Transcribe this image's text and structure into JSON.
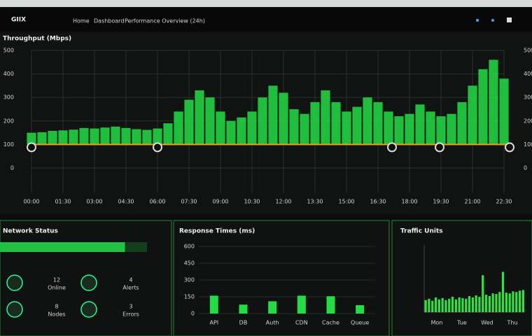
{
  "header": {
    "logo": "GIIX",
    "nav": [
      "Home",
      "Dashboard"
    ],
    "title": "Performance Overview (24h)"
  },
  "main_chart": {
    "type": "bar",
    "title": "Throughput (Mbps)",
    "color": "#22dd44",
    "x": [
      0,
      0.5,
      1,
      1.5,
      2,
      2.5,
      3,
      3.5,
      4,
      4.5,
      5,
      5.5,
      6,
      6.5,
      7,
      7.5,
      8,
      8.5,
      9,
      9.5,
      10,
      10.5,
      11,
      11.5,
      12,
      12.5,
      13,
      13.5,
      14,
      14.5,
      15,
      15.5,
      16,
      16.5,
      17,
      17.5,
      18,
      18.5,
      19,
      19.5,
      20,
      20.5,
      21,
      21.5,
      22,
      22.5
    ],
    "values": [
      150,
      152,
      158,
      160,
      163,
      170,
      168,
      172,
      176,
      170,
      165,
      162,
      168,
      190,
      240,
      290,
      330,
      300,
      240,
      200,
      215,
      240,
      300,
      350,
      320,
      250,
      230,
      280,
      330,
      280,
      240,
      260,
      300,
      280,
      240,
      220,
      230,
      270,
      240,
      220,
      230,
      280,
      350,
      420,
      460,
      380
    ],
    "xlim": [
      0,
      22.5
    ],
    "ylim": [
      0,
      500
    ],
    "yticks": [
      0,
      100,
      200,
      300,
      400,
      500
    ],
    "xticks": [
      {
        "value": 0,
        "label": "00:00"
      },
      {
        "value": 1.5,
        "label": "01:30"
      },
      {
        "value": 3,
        "label": "03:00"
      },
      {
        "value": 4.5,
        "label": "04:30"
      },
      {
        "value": 6,
        "label": "06:00"
      },
      {
        "value": 7.5,
        "label": "07:30"
      },
      {
        "value": 9,
        "label": "09:00"
      },
      {
        "value": 10.5,
        "label": "10:30"
      },
      {
        "value": 12,
        "label": "12:00"
      },
      {
        "value": 13.5,
        "label": "13:30"
      },
      {
        "value": 15,
        "label": "15:00"
      },
      {
        "value": 16.5,
        "label": "16:30"
      },
      {
        "value": 18,
        "label": "18:00"
      },
      {
        "value": 19.5,
        "label": "19:30"
      },
      {
        "value": 21,
        "label": "21:00"
      },
      {
        "value": 22.5,
        "label": "22:30"
      }
    ],
    "reference_line": {
      "value": 100,
      "color": "#e8a317"
    },
    "grid": true
  },
  "status_panel": {
    "title": "Network Status",
    "progress": 85,
    "stats": [
      {
        "value": "12",
        "label": "Online"
      },
      {
        "value": "4",
        "label": "Alerts"
      },
      {
        "value": "8",
        "label": "Nodes"
      },
      {
        "value": "3",
        "label": "Errors"
      }
    ]
  },
  "response_chart": {
    "type": "bar",
    "title": "Response Times (ms)",
    "color": "#22dd44",
    "categories": [
      "API",
      "DB",
      "Auth",
      "CDN",
      "Cache",
      "Queue"
    ],
    "values": [
      160,
      80,
      110,
      160,
      155,
      75
    ],
    "ylim": [
      0,
      600
    ],
    "yticks": [
      0,
      150,
      300,
      450,
      600
    ]
  },
  "traffic_chart": {
    "type": "bar",
    "title": "Traffic Units",
    "color": "#33dd44",
    "values": [
      18,
      20,
      17,
      22,
      19,
      21,
      18,
      20,
      23,
      19,
      22,
      21,
      20,
      24,
      22,
      25,
      23,
      55,
      26,
      24,
      28,
      27,
      30,
      60,
      29,
      28,
      31,
      30,
      32,
      33
    ],
    "ylim": [
      0,
      100
    ],
    "labels": [
      "Mon",
      "Tue",
      "Wed",
      "Thu"
    ]
  }
}
